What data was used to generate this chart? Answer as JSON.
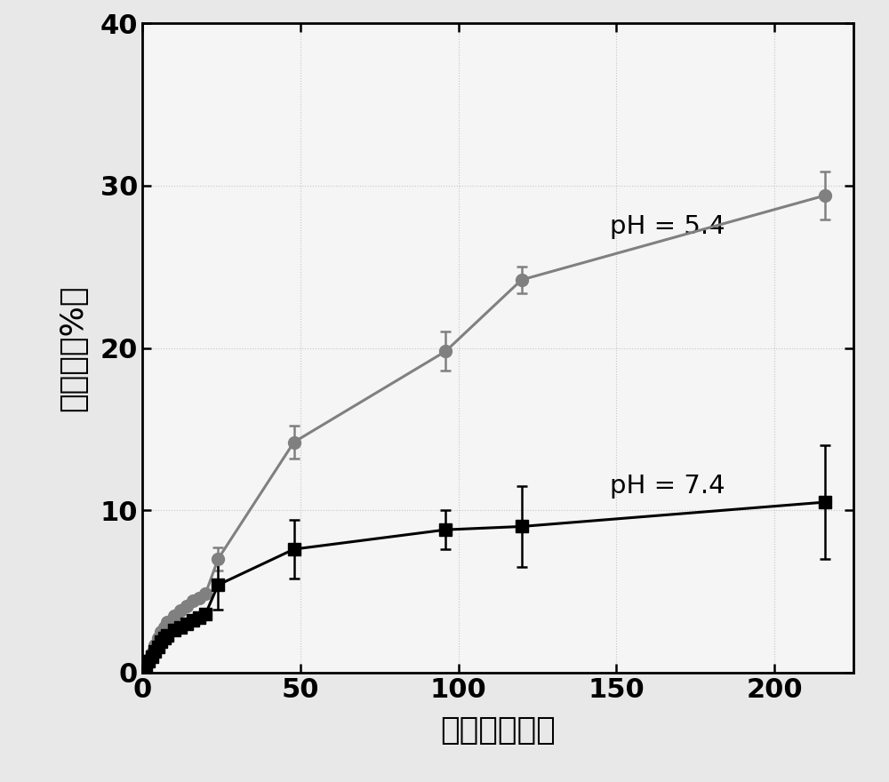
{
  "title": "",
  "xlabel": "时间（小时）",
  "ylabel": "释放量（%）",
  "xlim": [
    0,
    225
  ],
  "ylim": [
    0,
    40
  ],
  "xticks": [
    0,
    50,
    100,
    150,
    200
  ],
  "yticks": [
    0,
    10,
    20,
    30,
    40
  ],
  "ph54_x": [
    0.5,
    1,
    2,
    3,
    4,
    5,
    6,
    7,
    8,
    10,
    12,
    14,
    16,
    18,
    20,
    24,
    48,
    96,
    120,
    216
  ],
  "ph54_y": [
    0.15,
    0.4,
    0.8,
    1.2,
    1.7,
    2.1,
    2.5,
    2.8,
    3.1,
    3.5,
    3.8,
    4.1,
    4.4,
    4.6,
    4.85,
    7.0,
    14.2,
    19.8,
    24.2,
    29.4
  ],
  "ph54_yerr": [
    0.0,
    0.0,
    0.0,
    0.0,
    0.0,
    0.0,
    0.0,
    0.0,
    0.0,
    0.0,
    0.0,
    0.0,
    0.0,
    0.0,
    0.0,
    0.7,
    1.0,
    1.2,
    0.8,
    1.5
  ],
  "ph54_color": "#808080",
  "ph54_label": "pH = 5.4",
  "ph74_x": [
    0.5,
    1,
    2,
    3,
    4,
    5,
    6,
    7,
    8,
    10,
    12,
    14,
    16,
    18,
    20,
    24,
    48,
    96,
    120,
    216
  ],
  "ph74_y": [
    0.2,
    0.4,
    0.7,
    1.0,
    1.3,
    1.6,
    1.9,
    2.1,
    2.3,
    2.6,
    2.8,
    3.0,
    3.2,
    3.4,
    3.6,
    5.4,
    7.6,
    8.8,
    9.0,
    10.5
  ],
  "ph74_yerr": [
    0.0,
    0.0,
    0.0,
    0.0,
    0.0,
    0.0,
    0.0,
    0.0,
    0.0,
    0.0,
    0.0,
    0.0,
    0.0,
    0.0,
    0.0,
    1.5,
    1.8,
    1.2,
    2.5,
    3.5
  ],
  "ph74_color": "#000000",
  "ph74_label": "pH = 7.4",
  "background_color": "#e8e8e8",
  "axis_bg_color": "#f5f5f5",
  "label_fontsize": 26,
  "tick_fontsize": 22,
  "annotation_fontsize": 21,
  "linewidth": 2.2,
  "markersize": 10,
  "ann54_x": 148,
  "ann54_y": 27.5,
  "ann74_x": 148,
  "ann74_y": 11.5
}
